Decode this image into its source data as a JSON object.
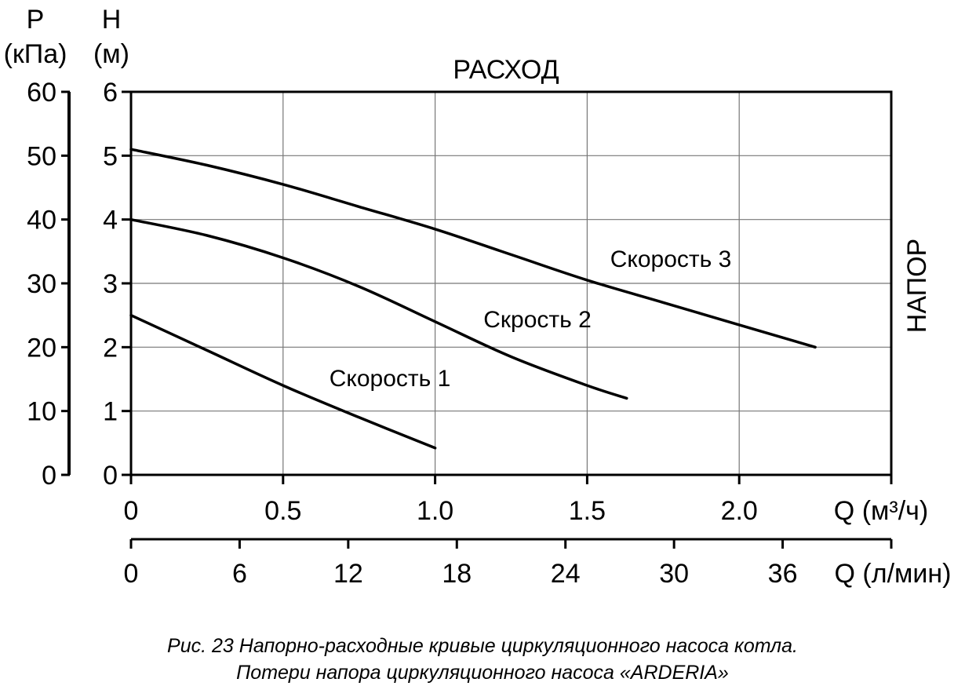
{
  "chart_data": {
    "type": "line",
    "title": "РАСХОД",
    "right_label": "НАПОР",
    "y_left_outer": {
      "symbol": "P",
      "unit": "(кПа)",
      "ticks": [
        "0",
        "10",
        "20",
        "30",
        "40",
        "50",
        "60"
      ],
      "ylim": [
        0,
        60
      ]
    },
    "y_left_inner": {
      "symbol": "H",
      "unit": "(м)",
      "ticks": [
        "0",
        "1",
        "2",
        "3",
        "4",
        "5",
        "6"
      ],
      "ylim": [
        0,
        6
      ]
    },
    "x_primary": {
      "label": "Q (м³/ч)",
      "ticks": [
        "0",
        "0.5",
        "1.0",
        "1.5",
        "2.0"
      ],
      "xlim": [
        0,
        2.5
      ]
    },
    "x_secondary": {
      "label": "Q (л/мин)",
      "ticks": [
        "0",
        "6",
        "12",
        "18",
        "24",
        "30",
        "36"
      ],
      "xlim": [
        0,
        42
      ]
    },
    "grid": true,
    "series": [
      {
        "name": "Скорость 1",
        "x": [
          0,
          0.25,
          0.5,
          0.75,
          1.0
        ],
        "y": [
          2.5,
          1.95,
          1.4,
          0.9,
          0.42
        ]
      },
      {
        "name": "Скрость 2",
        "x": [
          0,
          0.25,
          0.5,
          0.75,
          1.0,
          1.25,
          1.5,
          1.63
        ],
        "y": [
          4.0,
          3.75,
          3.4,
          2.95,
          2.4,
          1.85,
          1.4,
          1.2
        ]
      },
      {
        "name": "Скорость 3",
        "x": [
          0,
          0.25,
          0.5,
          0.75,
          1.0,
          1.25,
          1.5,
          1.75,
          2.0,
          2.25
        ],
        "y": [
          5.1,
          4.85,
          4.55,
          4.2,
          3.85,
          3.45,
          3.05,
          2.7,
          2.35,
          2.0
        ]
      }
    ]
  },
  "caption": {
    "line1": "Рис. 23   Напорно-расходные кривые циркуляционного насоса котла.",
    "line2": "Потери напора циркуляционного насоса «ARDERIA»"
  }
}
